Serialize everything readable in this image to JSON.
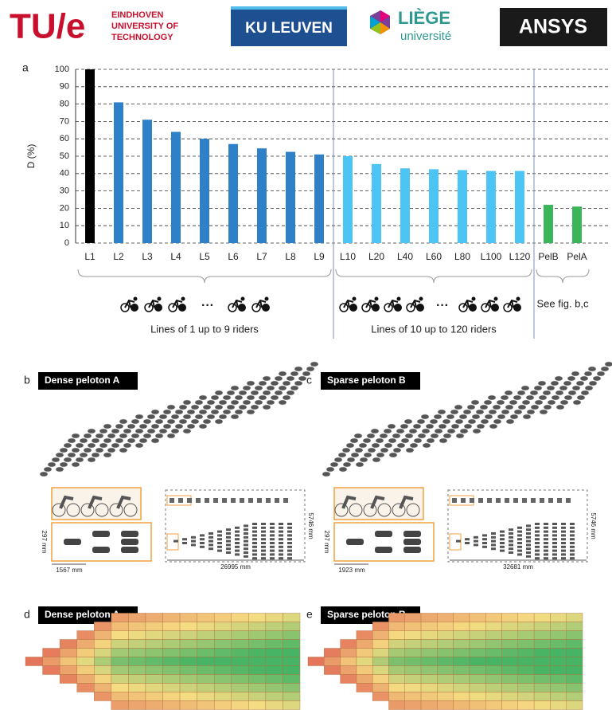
{
  "logos": {
    "tue_mark": "TU/e",
    "tue_name": [
      "EINDHOVEN",
      "UNIVERSITY OF",
      "TECHNOLOGY"
    ],
    "kuleuven": "KU LEUVEN",
    "liege": "LIÈGE",
    "liege_sub": "université",
    "ansys": "ANSYS"
  },
  "chart_data": {
    "type": "bar",
    "panel_label": "a",
    "y_label": "D (%)",
    "categories": [
      "L1",
      "L2",
      "L3",
      "L4",
      "L5",
      "L6",
      "L7",
      "L8",
      "L9",
      "L10",
      "L20",
      "L40",
      "L60",
      "L80",
      "L100",
      "L120",
      "PelB",
      "PelA"
    ],
    "values": [
      100,
      81,
      71,
      64,
      60,
      57,
      54.5,
      52.5,
      51,
      50,
      45.5,
      43,
      42.5,
      42,
      41.5,
      41.5,
      22,
      21
    ],
    "colors": [
      "#000000",
      "#2e80c8",
      "#2e80c8",
      "#2e80c8",
      "#2e80c8",
      "#2e80c8",
      "#2e80c8",
      "#2e80c8",
      "#2e80c8",
      "#4cc4f4",
      "#4cc4f4",
      "#4cc4f4",
      "#4cc4f4",
      "#4cc4f4",
      "#4cc4f4",
      "#4cc4f4",
      "#3ab55a",
      "#3ab55a"
    ],
    "ylim": [
      0,
      100
    ],
    "yticks": [
      0,
      10,
      20,
      30,
      40,
      50,
      60,
      70,
      80,
      90,
      100
    ],
    "grid": true,
    "groups": [
      "Lines of 1 up to 9 riders",
      "Lines of 10 up to 120 riders",
      "See fig. b,c"
    ],
    "rider_gap": "···"
  },
  "panels": {
    "b": {
      "label": "b",
      "title": "Dense peloton A",
      "dims": [
        "1567 mm",
        "26995 mm",
        "5746 mm",
        "297 mm"
      ]
    },
    "c": {
      "label": "c",
      "title": "Sparse peloton B",
      "dims": [
        "1923 mm",
        "32681 mm",
        "5746 mm",
        "297 mm"
      ]
    },
    "d": {
      "label": "d",
      "title": "Dense peloton A"
    },
    "e": {
      "label": "e",
      "title": "Sparse peloton B"
    }
  }
}
